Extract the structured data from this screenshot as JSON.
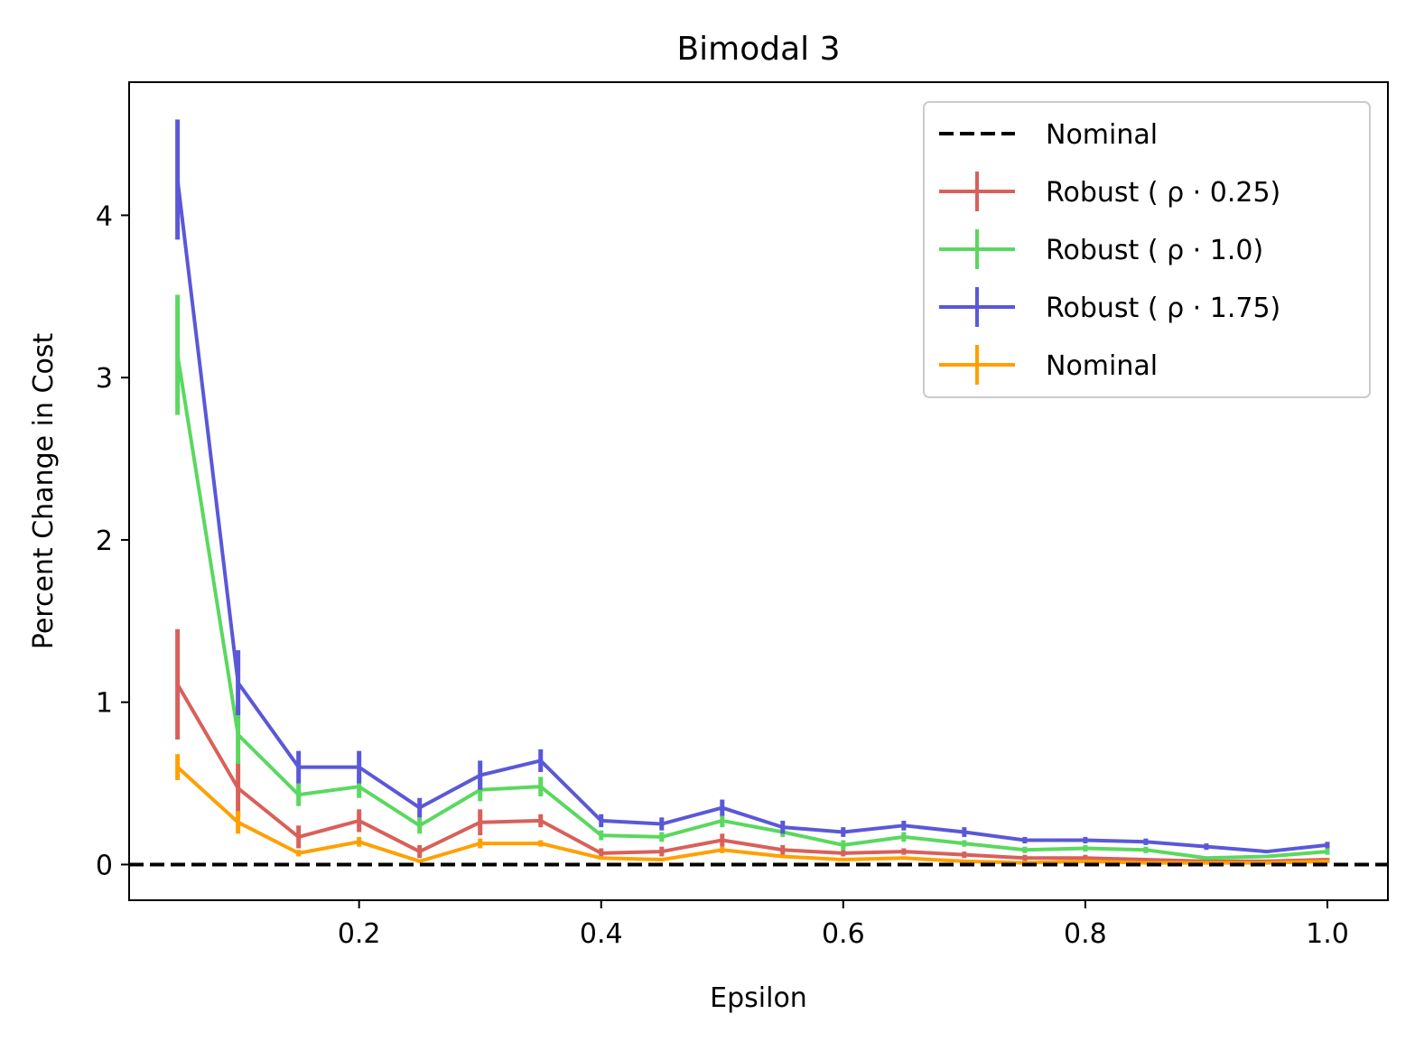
{
  "chart_data": {
    "type": "line",
    "title": "Bimodal 3",
    "xlabel": "Epsilon",
    "ylabel": "Percent Change in Cost",
    "xlim": [
      0.01,
      1.05
    ],
    "ylim": [
      -0.22,
      4.82
    ],
    "xticks": [
      0.2,
      0.4,
      0.6,
      0.8,
      1.0
    ],
    "xtick_labels": [
      "0.2",
      "0.4",
      "0.6",
      "0.8",
      "1.0"
    ],
    "yticks": [
      0,
      1,
      2,
      3,
      4
    ],
    "ytick_labels": [
      "0",
      "1",
      "2",
      "3",
      "4"
    ],
    "grid": false,
    "legend_position": "top-right",
    "reference_line": {
      "label": "Nominal",
      "y": 0,
      "color": "#000000",
      "style": "dashed"
    },
    "x": [
      0.05,
      0.1,
      0.15,
      0.2,
      0.25,
      0.3,
      0.35,
      0.4,
      0.45,
      0.5,
      0.55,
      0.6,
      0.65,
      0.7,
      0.75,
      0.8,
      0.85,
      0.9,
      0.95,
      1.0
    ],
    "series": [
      {
        "name": "Robust ( ρ · 0.25)",
        "color": "#d9605a",
        "values": [
          1.11,
          0.47,
          0.17,
          0.27,
          0.08,
          0.26,
          0.27,
          0.07,
          0.08,
          0.15,
          0.09,
          0.07,
          0.08,
          0.06,
          0.04,
          0.04,
          0.03,
          0.02,
          0.02,
          0.03
        ],
        "errors": [
          0.34,
          0.16,
          0.07,
          0.07,
          0.04,
          0.08,
          0.04,
          0.03,
          0.03,
          0.04,
          0.03,
          0.02,
          0.02,
          0.02,
          0.02,
          0.02,
          0.01,
          0.01,
          0.01,
          0.01
        ]
      },
      {
        "name": "Robust ( ρ · 1.0)",
        "color": "#5ad85f",
        "values": [
          3.14,
          0.8,
          0.43,
          0.48,
          0.24,
          0.46,
          0.48,
          0.18,
          0.17,
          0.27,
          0.2,
          0.12,
          0.17,
          0.13,
          0.09,
          0.1,
          0.09,
          0.04,
          0.05,
          0.08
        ],
        "errors": [
          0.37,
          0.18,
          0.07,
          0.07,
          0.05,
          0.07,
          0.06,
          0.03,
          0.03,
          0.04,
          0.03,
          0.03,
          0.03,
          0.02,
          0.02,
          0.02,
          0.02,
          0.01,
          0.01,
          0.02
        ]
      },
      {
        "name": "Robust ( ρ · 1.75)",
        "color": "#5a58d8",
        "values": [
          4.22,
          1.12,
          0.6,
          0.6,
          0.35,
          0.55,
          0.64,
          0.27,
          0.25,
          0.35,
          0.23,
          0.2,
          0.24,
          0.2,
          0.15,
          0.15,
          0.14,
          0.11,
          0.08,
          0.12
        ],
        "errors": [
          0.37,
          0.2,
          0.1,
          0.1,
          0.06,
          0.09,
          0.07,
          0.04,
          0.04,
          0.05,
          0.04,
          0.03,
          0.03,
          0.03,
          0.02,
          0.02,
          0.02,
          0.02,
          0.01,
          0.02
        ]
      },
      {
        "name": "Nominal",
        "color": "#ffa000",
        "values": [
          0.6,
          0.26,
          0.07,
          0.14,
          0.02,
          0.13,
          0.13,
          0.04,
          0.03,
          0.09,
          0.05,
          0.03,
          0.04,
          0.02,
          0.01,
          0.02,
          0.01,
          0.01,
          0.01,
          0.02
        ],
        "errors": [
          0.08,
          0.07,
          0.02,
          0.03,
          0.01,
          0.03,
          0.02,
          0.01,
          0.01,
          0.02,
          0.01,
          0.01,
          0.01,
          0.01,
          0.01,
          0.01,
          0.01,
          0.01,
          0.01,
          0.01
        ]
      }
    ]
  }
}
